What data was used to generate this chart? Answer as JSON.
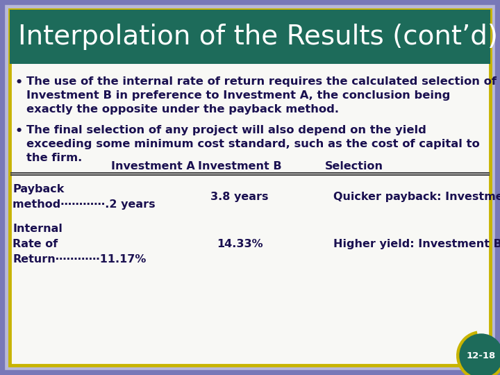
{
  "title": "Interpolation of the Results (cont’d)",
  "title_bg_color": "#1d6b5a",
  "title_text_color": "#ffffff",
  "slide_bg_color": "#b8b8d8",
  "content_bg_color": "#f8f8f5",
  "border_color_outer": "#7878b8",
  "border_color_inner": "#c8b400",
  "bullet1_line1": "The use of the internal rate of return requires the calculated selection of",
  "bullet1_line2": "Investment B in preference to Investment A, the conclusion being",
  "bullet1_line3": "exactly the opposite under the payback method.",
  "bullet2_line1": "The final selection of any project will also depend on the yield",
  "bullet2_line2": "exceeding some minimum cost standard, such as the cost of capital to",
  "bullet2_line3": "the firm.",
  "col1_header": "Investment A",
  "col2_header": "Investment B",
  "col3_header": "Selection",
  "row1_col0_l1": "Payback",
  "row1_col0_l2": "method⋯⋯⋯⋯.2 years",
  "row1_col2": "3.8 years",
  "row1_col3": "Quicker payback: Investment A",
  "row2_col0_l1": "Internal",
  "row2_col0_l2": "Rate of",
  "row2_col0_l3": "Return⋯⋯⋯⋯11.17%",
  "row2_col2": "14.33%",
  "row2_col3": "Higher yield: Investment B",
  "page_num": "12-18",
  "text_color": "#1a1050",
  "bullet_color": "#1a1050",
  "table_text_color": "#1a1050",
  "gold_color": "#c8b400",
  "title_font_size": 28,
  "body_font_size": 11.8,
  "table_font_size": 11.5
}
